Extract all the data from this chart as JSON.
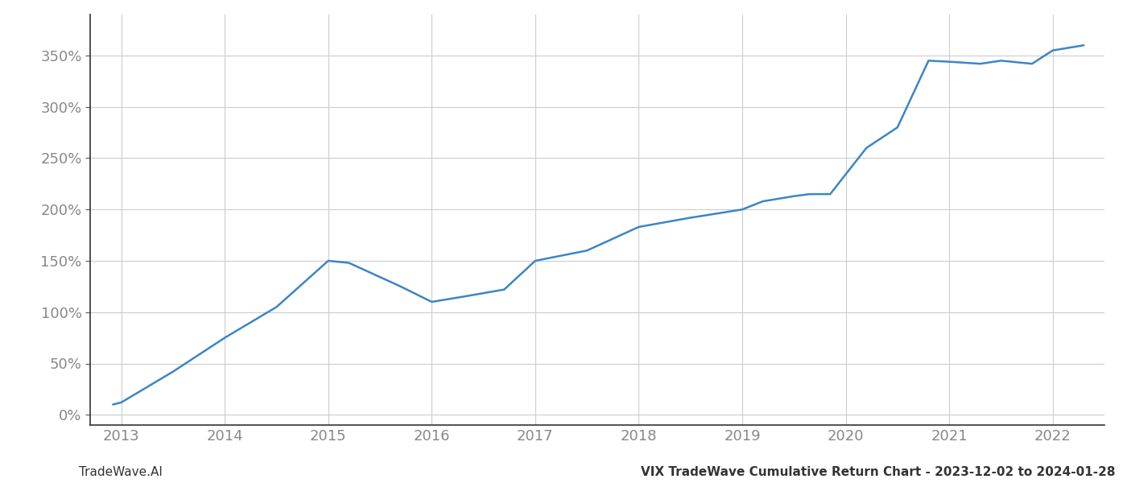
{
  "x_values": [
    2012.92,
    2013.0,
    2013.5,
    2014.0,
    2014.5,
    2015.0,
    2015.2,
    2015.7,
    2016.0,
    2016.3,
    2016.7,
    2017.0,
    2017.5,
    2018.0,
    2018.5,
    2019.0,
    2019.2,
    2019.5,
    2019.65,
    2019.85,
    2020.2,
    2020.5,
    2020.8,
    2021.0,
    2021.3,
    2021.5,
    2021.8,
    2022.0,
    2022.3
  ],
  "y_values": [
    10,
    12,
    42,
    75,
    105,
    150,
    148,
    125,
    110,
    115,
    122,
    150,
    160,
    183,
    192,
    200,
    208,
    213,
    215,
    215,
    260,
    280,
    345,
    344,
    342,
    345,
    342,
    355,
    360
  ],
  "line_color": "#3a86c8",
  "line_width": 1.8,
  "x_ticks": [
    2013,
    2014,
    2015,
    2016,
    2017,
    2018,
    2019,
    2020,
    2021,
    2022
  ],
  "y_ticks": [
    0,
    50,
    100,
    150,
    200,
    250,
    300,
    350
  ],
  "y_tick_labels": [
    "0%",
    "50%",
    "100%",
    "150%",
    "200%",
    "250%",
    "300%",
    "350%"
  ],
  "xlim": [
    2012.7,
    2022.5
  ],
  "ylim": [
    -10,
    390
  ],
  "background_color": "#ffffff",
  "grid_color": "#cccccc",
  "tick_color": "#888888",
  "footer_left": "TradeWave.AI",
  "footer_right": "VIX TradeWave Cumulative Return Chart - 2023-12-02 to 2024-01-28",
  "footer_fontsize": 11,
  "tick_fontsize": 13,
  "left_spine_color": "#333333",
  "bottom_spine_color": "#333333"
}
